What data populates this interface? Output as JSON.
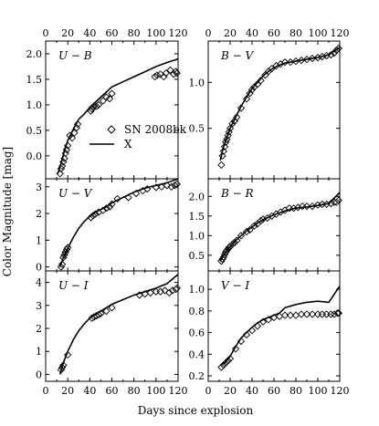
{
  "xlabel": "Days since explosion",
  "ylabel": "Color Magnitude [mag]",
  "legend": {
    "data_label": "SN 2008bk",
    "model_label": "X"
  },
  "chart_data": [
    {
      "type": "scatter",
      "panel": "U-B",
      "title": "U − B",
      "xlim": [
        0,
        120
      ],
      "ylim": [
        -0.45,
        2.25
      ],
      "yticks": [
        0,
        0.5,
        1,
        1.5,
        2
      ],
      "ytick_labels": [
        "0.0",
        "0.5",
        "1.0",
        "1.5",
        "2.0"
      ],
      "observed": [
        [
          13,
          -0.35
        ],
        [
          14,
          -0.25
        ],
        [
          15,
          -0.2
        ],
        [
          16,
          -0.12
        ],
        [
          17,
          -0.05
        ],
        [
          18,
          0.05
        ],
        [
          19,
          0.12
        ],
        [
          20,
          0.2
        ],
        [
          22,
          0.4
        ],
        [
          24,
          0.35
        ],
        [
          26,
          0.45
        ],
        [
          28,
          0.55
        ],
        [
          29,
          0.62
        ],
        [
          41,
          0.88
        ],
        [
          42,
          0.92
        ],
        [
          43,
          0.95
        ],
        [
          44,
          0.98
        ],
        [
          46,
          0.97
        ],
        [
          48,
          1.0
        ],
        [
          52,
          1.08
        ],
        [
          55,
          1.15
        ],
        [
          58,
          1.12
        ],
        [
          60,
          1.22
        ],
        [
          99,
          1.55
        ],
        [
          101,
          1.58
        ],
        [
          104,
          1.6
        ],
        [
          107,
          1.55
        ],
        [
          109,
          1.62
        ],
        [
          113,
          1.68
        ],
        [
          116,
          1.6
        ],
        [
          118,
          1.65
        ],
        [
          119,
          1.62
        ]
      ],
      "model": [
        [
          11,
          -0.35
        ],
        [
          14,
          -0.15
        ],
        [
          17,
          0.1
        ],
        [
          20,
          0.3
        ],
        [
          25,
          0.52
        ],
        [
          30,
          0.72
        ],
        [
          35,
          0.82
        ],
        [
          40,
          0.95
        ],
        [
          45,
          1.05
        ],
        [
          50,
          1.15
        ],
        [
          55,
          1.25
        ],
        [
          60,
          1.35
        ],
        [
          70,
          1.45
        ],
        [
          80,
          1.55
        ],
        [
          90,
          1.65
        ],
        [
          100,
          1.75
        ],
        [
          110,
          1.83
        ],
        [
          120,
          1.9
        ]
      ]
    },
    {
      "type": "scatter",
      "panel": "B-V",
      "title": "B − V",
      "xlim": [
        0,
        120
      ],
      "ylim": [
        -0.05,
        1.45
      ],
      "yticks": [
        0.5,
        1.0
      ],
      "ytick_labels": [
        "0.5",
        "1.0"
      ],
      "observed": [
        [
          12,
          0.1
        ],
        [
          13,
          0.2
        ],
        [
          14,
          0.25
        ],
        [
          15,
          0.3
        ],
        [
          16,
          0.35
        ],
        [
          17,
          0.38
        ],
        [
          18,
          0.42
        ],
        [
          19,
          0.46
        ],
        [
          20,
          0.5
        ],
        [
          22,
          0.55
        ],
        [
          24,
          0.58
        ],
        [
          26,
          0.62
        ],
        [
          30,
          0.72
        ],
        [
          35,
          0.82
        ],
        [
          38,
          0.88
        ],
        [
          40,
          0.92
        ],
        [
          42,
          0.95
        ],
        [
          45,
          0.98
        ],
        [
          48,
          1.02
        ],
        [
          52,
          1.08
        ],
        [
          55,
          1.12
        ],
        [
          58,
          1.15
        ],
        [
          62,
          1.18
        ],
        [
          66,
          1.2
        ],
        [
          70,
          1.22
        ],
        [
          75,
          1.22
        ],
        [
          80,
          1.23
        ],
        [
          85,
          1.24
        ],
        [
          90,
          1.25
        ],
        [
          95,
          1.26
        ],
        [
          100,
          1.27
        ],
        [
          104,
          1.28
        ],
        [
          108,
          1.29
        ],
        [
          112,
          1.3
        ],
        [
          115,
          1.32
        ],
        [
          117,
          1.35
        ],
        [
          119,
          1.37
        ]
      ],
      "model": [
        [
          11,
          0.15
        ],
        [
          14,
          0.3
        ],
        [
          17,
          0.4
        ],
        [
          20,
          0.5
        ],
        [
          25,
          0.62
        ],
        [
          30,
          0.74
        ],
        [
          35,
          0.84
        ],
        [
          40,
          0.93
        ],
        [
          45,
          1.0
        ],
        [
          50,
          1.07
        ],
        [
          55,
          1.12
        ],
        [
          60,
          1.16
        ],
        [
          65,
          1.19
        ],
        [
          70,
          1.21
        ],
        [
          80,
          1.23
        ],
        [
          90,
          1.25
        ],
        [
          100,
          1.27
        ],
        [
          110,
          1.3
        ],
        [
          120,
          1.38
        ]
      ]
    },
    {
      "type": "scatter",
      "panel": "U-V",
      "title": "U − V",
      "xlim": [
        0,
        120
      ],
      "ylim": [
        -0.15,
        3.3
      ],
      "yticks": [
        0,
        1,
        2,
        3
      ],
      "ytick_labels": [
        "0",
        "1",
        "2",
        "3"
      ],
      "observed": [
        [
          14,
          0.0
        ],
        [
          15,
          0.1
        ],
        [
          16,
          0.35
        ],
        [
          17,
          0.45
        ],
        [
          18,
          0.55
        ],
        [
          19,
          0.65
        ],
        [
          20,
          0.72
        ],
        [
          41,
          1.85
        ],
        [
          43,
          1.92
        ],
        [
          45,
          1.98
        ],
        [
          48,
          2.05
        ],
        [
          52,
          2.12
        ],
        [
          55,
          2.2
        ],
        [
          58,
          2.25
        ],
        [
          60,
          2.35
        ],
        [
          65,
          2.55
        ],
        [
          75,
          2.6
        ],
        [
          82,
          2.75
        ],
        [
          88,
          2.85
        ],
        [
          92,
          2.92
        ],
        [
          100,
          2.98
        ],
        [
          105,
          3.0
        ],
        [
          110,
          3.05
        ],
        [
          114,
          3.0
        ],
        [
          117,
          3.05
        ],
        [
          119,
          3.1
        ]
      ],
      "model": [
        [
          13,
          0.0
        ],
        [
          16,
          0.35
        ],
        [
          20,
          0.7
        ],
        [
          25,
          1.1
        ],
        [
          30,
          1.45
        ],
        [
          35,
          1.7
        ],
        [
          40,
          1.9
        ],
        [
          45,
          2.05
        ],
        [
          50,
          2.15
        ],
        [
          55,
          2.25
        ],
        [
          60,
          2.4
        ],
        [
          70,
          2.6
        ],
        [
          80,
          2.8
        ],
        [
          90,
          2.95
        ],
        [
          100,
          3.05
        ],
        [
          110,
          3.15
        ],
        [
          120,
          3.3
        ]
      ]
    },
    {
      "type": "scatter",
      "panel": "B-R",
      "title": "B − R",
      "xlim": [
        0,
        120
      ],
      "ylim": [
        0.1,
        2.45
      ],
      "yticks": [
        0.5,
        1.0,
        1.5,
        2.0
      ],
      "ytick_labels": [
        "0.5",
        "1.0",
        "1.5",
        "2.0"
      ],
      "observed": [
        [
          12,
          0.35
        ],
        [
          13,
          0.4
        ],
        [
          14,
          0.45
        ],
        [
          15,
          0.52
        ],
        [
          16,
          0.58
        ],
        [
          17,
          0.62
        ],
        [
          18,
          0.66
        ],
        [
          19,
          0.7
        ],
        [
          20,
          0.72
        ],
        [
          22,
          0.78
        ],
        [
          24,
          0.82
        ],
        [
          26,
          0.88
        ],
        [
          30,
          1.0
        ],
        [
          35,
          1.1
        ],
        [
          38,
          1.15
        ],
        [
          42,
          1.25
        ],
        [
          45,
          1.3
        ],
        [
          48,
          1.38
        ],
        [
          50,
          1.42
        ],
        [
          54,
          1.45
        ],
        [
          58,
          1.5
        ],
        [
          62,
          1.55
        ],
        [
          66,
          1.6
        ],
        [
          70,
          1.65
        ],
        [
          74,
          1.7
        ],
        [
          78,
          1.7
        ],
        [
          82,
          1.72
        ],
        [
          86,
          1.75
        ],
        [
          90,
          1.75
        ],
        [
          95,
          1.75
        ],
        [
          100,
          1.78
        ],
        [
          104,
          1.8
        ],
        [
          108,
          1.8
        ],
        [
          112,
          1.82
        ],
        [
          115,
          1.85
        ],
        [
          117,
          1.85
        ],
        [
          119,
          1.9
        ]
      ],
      "model": [
        [
          11,
          0.35
        ],
        [
          14,
          0.5
        ],
        [
          18,
          0.65
        ],
        [
          22,
          0.78
        ],
        [
          26,
          0.9
        ],
        [
          30,
          1.0
        ],
        [
          35,
          1.12
        ],
        [
          40,
          1.22
        ],
        [
          45,
          1.32
        ],
        [
          50,
          1.4
        ],
        [
          55,
          1.47
        ],
        [
          60,
          1.53
        ],
        [
          65,
          1.58
        ],
        [
          70,
          1.63
        ],
        [
          80,
          1.7
        ],
        [
          90,
          1.73
        ],
        [
          100,
          1.77
        ],
        [
          110,
          1.82
        ],
        [
          120,
          2.1
        ]
      ]
    },
    {
      "type": "scatter",
      "panel": "U-I",
      "title": "U − I",
      "xlim": [
        0,
        120
      ],
      "ylim": [
        -0.3,
        4.5
      ],
      "yticks": [
        0,
        1,
        2,
        3,
        4
      ],
      "ytick_labels": [
        "0",
        "1",
        "2",
        "3",
        "4"
      ],
      "observed": [
        [
          14,
          0.2
        ],
        [
          15,
          0.3
        ],
        [
          16,
          0.4
        ],
        [
          20,
          0.85
        ],
        [
          42,
          2.45
        ],
        [
          44,
          2.5
        ],
        [
          46,
          2.55
        ],
        [
          48,
          2.6
        ],
        [
          50,
          2.65
        ],
        [
          55,
          2.75
        ],
        [
          60,
          2.9
        ],
        [
          85,
          3.45
        ],
        [
          90,
          3.5
        ],
        [
          95,
          3.55
        ],
        [
          100,
          3.6
        ],
        [
          104,
          3.6
        ],
        [
          108,
          3.65
        ],
        [
          112,
          3.55
        ],
        [
          115,
          3.65
        ],
        [
          118,
          3.7
        ],
        [
          119,
          3.75
        ]
      ],
      "model": [
        [
          13,
          0.0
        ],
        [
          16,
          0.5
        ],
        [
          20,
          1.0
        ],
        [
          25,
          1.5
        ],
        [
          30,
          1.9
        ],
        [
          35,
          2.2
        ],
        [
          40,
          2.45
        ],
        [
          45,
          2.6
        ],
        [
          50,
          2.75
        ],
        [
          55,
          2.9
        ],
        [
          60,
          3.05
        ],
        [
          70,
          3.25
        ],
        [
          80,
          3.45
        ],
        [
          90,
          3.6
        ],
        [
          100,
          3.75
        ],
        [
          110,
          3.95
        ],
        [
          120,
          4.35
        ]
      ]
    },
    {
      "type": "scatter",
      "panel": "V-I",
      "title": "V − I",
      "xlim": [
        0,
        120
      ],
      "ylim": [
        0.15,
        1.17
      ],
      "yticks": [
        0.2,
        0.4,
        0.6,
        0.8,
        1.0
      ],
      "ytick_labels": [
        "0.2",
        "0.4",
        "0.6",
        "0.8",
        "1.0"
      ],
      "observed": [
        [
          12,
          0.28
        ],
        [
          14,
          0.3
        ],
        [
          16,
          0.32
        ],
        [
          18,
          0.34
        ],
        [
          20,
          0.36
        ],
        [
          25,
          0.45
        ],
        [
          30,
          0.52
        ],
        [
          35,
          0.58
        ],
        [
          40,
          0.62
        ],
        [
          45,
          0.66
        ],
        [
          50,
          0.7
        ],
        [
          55,
          0.72
        ],
        [
          60,
          0.74
        ],
        [
          65,
          0.75
        ],
        [
          70,
          0.76
        ],
        [
          75,
          0.76
        ],
        [
          80,
          0.76
        ],
        [
          85,
          0.77
        ],
        [
          90,
          0.77
        ],
        [
          95,
          0.77
        ],
        [
          100,
          0.77
        ],
        [
          104,
          0.77
        ],
        [
          108,
          0.77
        ],
        [
          112,
          0.77
        ],
        [
          115,
          0.77
        ],
        [
          118,
          0.78
        ],
        [
          119,
          0.78
        ]
      ],
      "model": [
        [
          11,
          0.3
        ],
        [
          15,
          0.32
        ],
        [
          20,
          0.38
        ],
        [
          25,
          0.47
        ],
        [
          30,
          0.55
        ],
        [
          35,
          0.6
        ],
        [
          40,
          0.65
        ],
        [
          45,
          0.69
        ],
        [
          50,
          0.72
        ],
        [
          55,
          0.74
        ],
        [
          60,
          0.76
        ],
        [
          65,
          0.78
        ],
        [
          70,
          0.83
        ],
        [
          80,
          0.86
        ],
        [
          90,
          0.88
        ],
        [
          100,
          0.89
        ],
        [
          110,
          0.88
        ],
        [
          120,
          1.03
        ]
      ]
    }
  ]
}
